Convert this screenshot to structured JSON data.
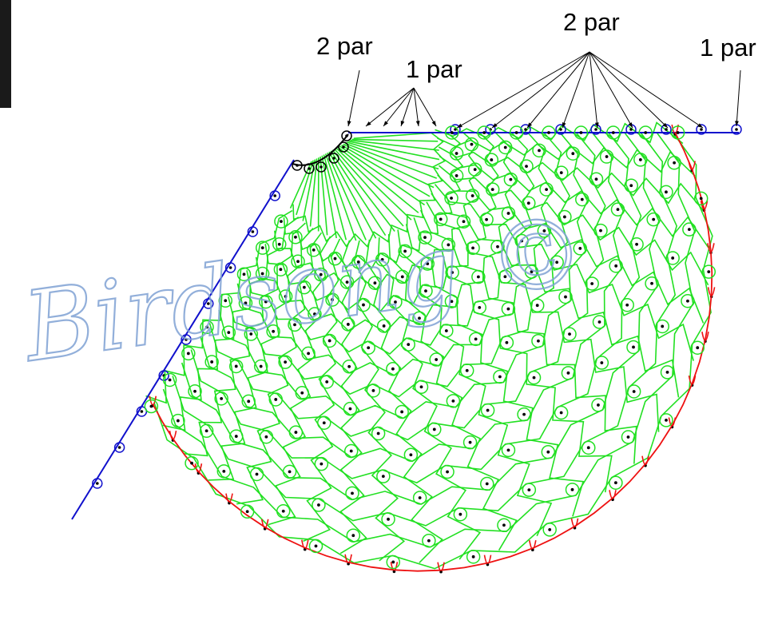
{
  "labels": {
    "left_top": "2 par",
    "left_mid": "1 par",
    "right_top": "2 par",
    "right_end": "1 par"
  },
  "watermark": "Birdsong ©",
  "colors": {
    "blue_edge": "#1010cc",
    "green_thread": "#22e022",
    "red_border": "#ee1111",
    "black": "#000000",
    "watermark": "#7fa2d4"
  }
}
